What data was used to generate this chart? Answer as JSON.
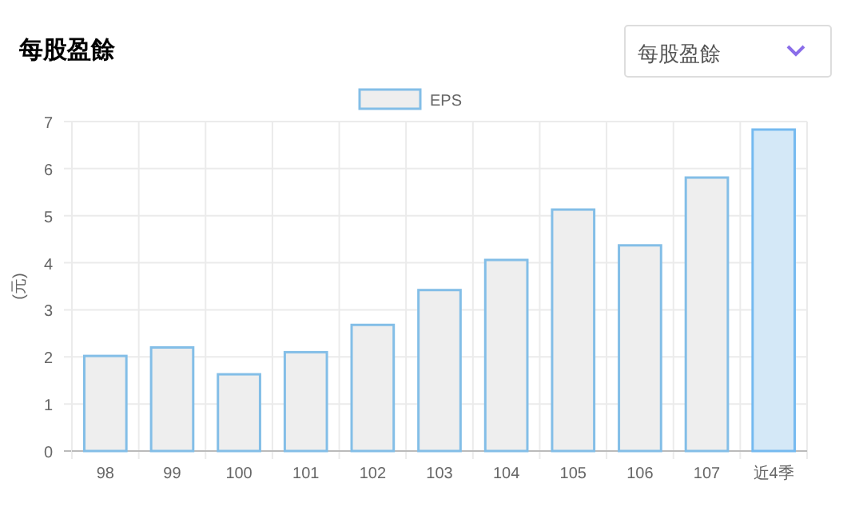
{
  "chart_data": {
    "type": "bar",
    "title": "每股盈餘",
    "ylabel": "(元)",
    "annotations": [
      "每股盈餘"
    ],
    "categories": [
      "98",
      "99",
      "100",
      "101",
      "102",
      "103",
      "104",
      "105",
      "106",
      "107",
      "近4季"
    ],
    "series": [
      {
        "name": "EPS",
        "color": "#eeeeee",
        "colors": [
          "#eeeeee",
          "#eeeeee",
          "#eeeeee",
          "#eeeeee",
          "#eeeeee",
          "#eeeeee",
          "#eeeeee",
          "#eeeeee",
          "#eeeeee",
          "#eeeeee",
          "#d4e8f7"
        ],
        "values": [
          2.02,
          2.2,
          1.63,
          2.1,
          2.68,
          3.42,
          4.06,
          5.13,
          4.37,
          5.81,
          6.83
        ]
      }
    ],
    "ylim": [
      0,
      7
    ],
    "yticks": [
      0,
      1,
      2,
      3,
      4,
      5,
      6,
      7
    ],
    "grid": true,
    "legend": "top"
  }
}
